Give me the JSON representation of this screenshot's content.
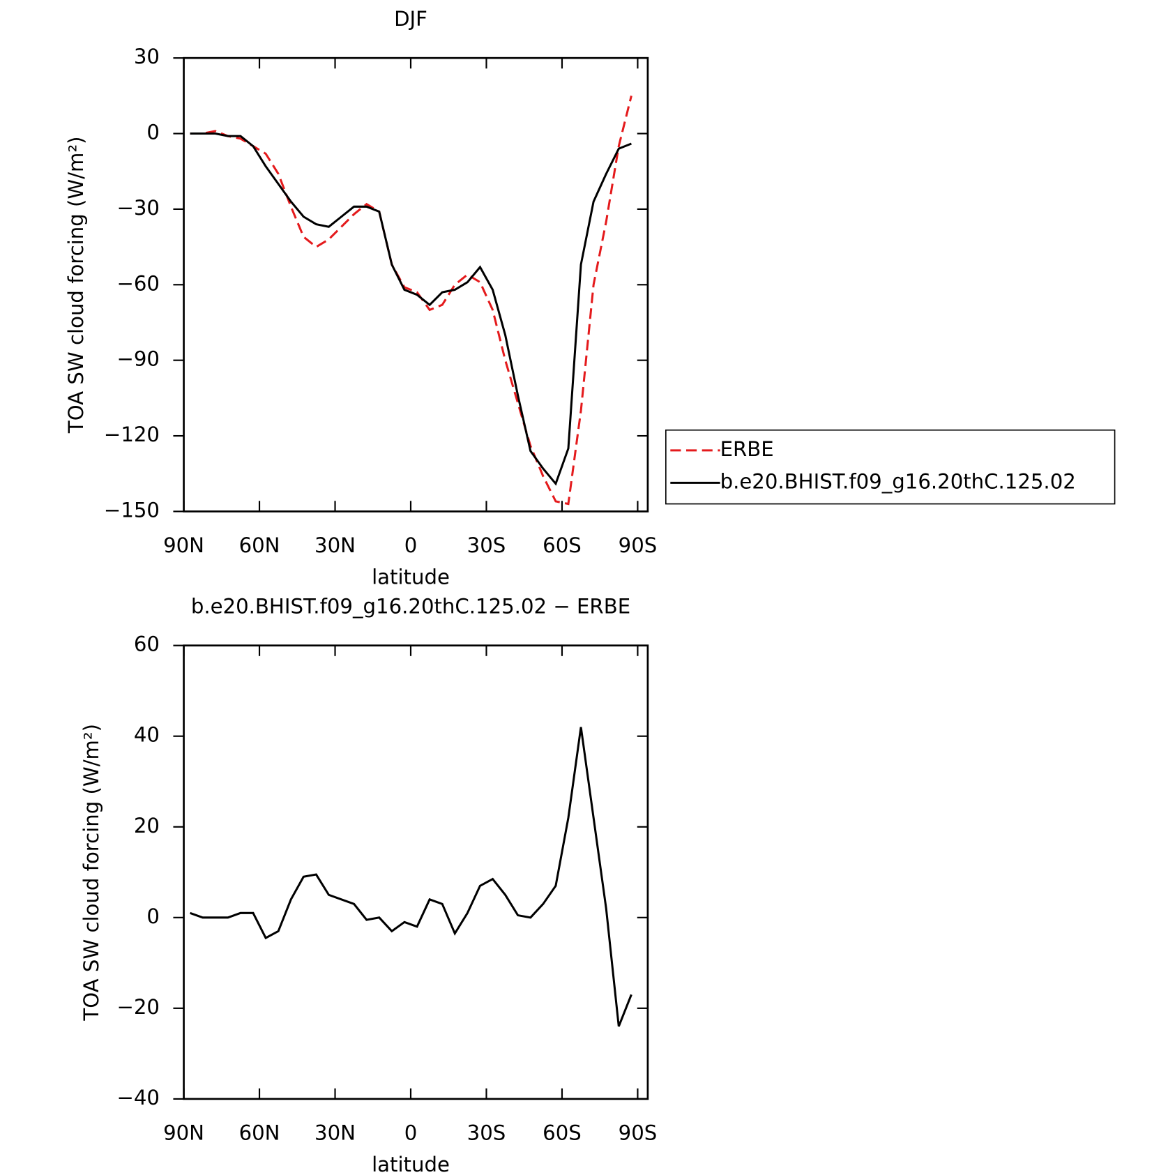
{
  "chart_data": [
    {
      "type": "line",
      "title": "DJF",
      "xlabel": "latitude",
      "ylabel": "TOA SW cloud forcing (W/m²)",
      "x": [
        87.5,
        82.5,
        77.5,
        72.5,
        67.5,
        62.5,
        57.5,
        52.5,
        47.5,
        42.5,
        37.5,
        32.5,
        27.5,
        22.5,
        17.5,
        12.5,
        7.5,
        2.5,
        -2.5,
        -7.5,
        -12.5,
        -17.5,
        -22.5,
        -27.5,
        -32.5,
        -37.5,
        -42.5,
        -47.5,
        -52.5,
        -57.5,
        -62.5,
        -67.5,
        -72.5,
        -77.5,
        -82.5,
        -87.5
      ],
      "series": [
        {
          "name": "ERBE",
          "color": "#e41a1c",
          "linestyle": "dashed",
          "values": [
            0,
            0,
            1,
            -1,
            -2,
            -5,
            -8,
            -16,
            -29,
            -41,
            -45,
            -42,
            -37,
            -32,
            -28,
            -31,
            -52,
            -61,
            -63,
            -70,
            -68,
            -60,
            -56,
            -59,
            -70,
            -90,
            -107,
            -124,
            -136,
            -146,
            -147,
            -110,
            -60,
            -35,
            -5,
            15
          ]
        },
        {
          "name": "b.e20.BHIST.f09_g16.20thC.125.02",
          "color": "#000000",
          "linestyle": "solid",
          "values": [
            0,
            0,
            0,
            -1,
            -1,
            -5,
            -13,
            -20,
            -27,
            -33,
            -36,
            -37,
            -33,
            -29,
            -29,
            -31,
            -52,
            -62,
            -64,
            -68,
            -63,
            -62,
            -59,
            -53,
            -62,
            -80,
            -104,
            -126,
            -133,
            -139,
            -125,
            -52,
            -27,
            -16,
            -6,
            -4
          ]
        }
      ],
      "xlim": [
        90,
        -94
      ],
      "xticks": [
        {
          "value": 90,
          "label": "90N"
        },
        {
          "value": 60,
          "label": "60N"
        },
        {
          "value": 30,
          "label": "30N"
        },
        0,
        {
          "value": -30,
          "label": "30S"
        },
        {
          "value": -60,
          "label": "60S"
        },
        {
          "value": -90,
          "label": "90S"
        }
      ],
      "ylim": [
        -150,
        30
      ],
      "yticks": [
        30,
        0,
        {
          "value": -30,
          "label": "−30"
        },
        {
          "value": -60,
          "label": "−60"
        },
        {
          "value": -90,
          "label": "−90"
        },
        {
          "value": -120,
          "label": "−120"
        },
        {
          "value": -150,
          "label": "−150"
        }
      ],
      "legend_position": "right"
    },
    {
      "type": "line",
      "title": "b.e20.BHIST.f09_g16.20thC.125.02 − ERBE",
      "xlabel": "latitude",
      "ylabel": "TOA SW cloud forcing (W/m²)",
      "x": [
        87.5,
        82.5,
        77.5,
        72.5,
        67.5,
        62.5,
        57.5,
        52.5,
        47.5,
        42.5,
        37.5,
        32.5,
        27.5,
        22.5,
        17.5,
        12.5,
        7.5,
        2.5,
        -2.5,
        -7.5,
        -12.5,
        -17.5,
        -22.5,
        -27.5,
        -32.5,
        -37.5,
        -42.5,
        -47.5,
        -52.5,
        -57.5,
        -62.5,
        -67.5,
        -72.5,
        -77.5,
        -82.5,
        -87.5
      ],
      "series": [
        {
          "color": "#000000",
          "linestyle": "solid",
          "values": [
            1,
            0,
            0,
            0,
            1,
            1,
            -4.5,
            -3,
            4,
            9,
            9.5,
            5,
            4,
            3,
            -0.5,
            0,
            -3,
            -1,
            -2,
            4,
            3,
            -3.5,
            1,
            7,
            8.5,
            5,
            0.5,
            0,
            3,
            7,
            22,
            42,
            22,
            2,
            -24,
            -17
          ]
        }
      ],
      "xlim": [
        90,
        -94
      ],
      "xticks": [
        {
          "value": 90,
          "label": "90N"
        },
        {
          "value": 60,
          "label": "60N"
        },
        {
          "value": 30,
          "label": "30N"
        },
        0,
        {
          "value": -30,
          "label": "30S"
        },
        {
          "value": -60,
          "label": "60S"
        },
        {
          "value": -90,
          "label": "90S"
        }
      ],
      "ylim": [
        -40,
        60
      ],
      "yticks": [
        60,
        40,
        20,
        0,
        {
          "value": -20,
          "label": "−20"
        },
        {
          "value": -40,
          "label": "−40"
        }
      ]
    }
  ]
}
